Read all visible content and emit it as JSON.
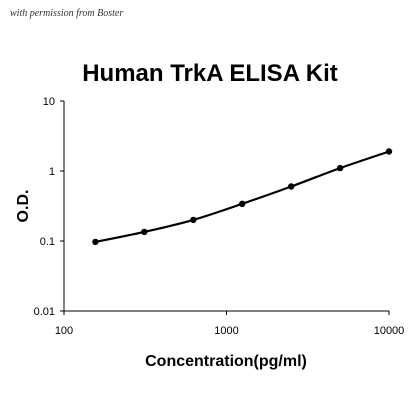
{
  "watermark": "with permission from Boster",
  "chart_data": {
    "type": "line",
    "title": "Human TrkA ELISA Kit",
    "xlabel": "Concentration(pg/ml)",
    "ylabel": "O.D.",
    "x_scale": "log",
    "y_scale": "log",
    "xlim": [
      100,
      10000
    ],
    "ylim": [
      0.01,
      10
    ],
    "x_ticks": [
      "100",
      "1000",
      "10000"
    ],
    "y_ticks": [
      "0.01",
      "0.1",
      "1",
      "10"
    ],
    "grid": false,
    "legend": "none",
    "line_color": "#000000",
    "series": [
      {
        "x": [
          156,
          312,
          625,
          1250,
          2500,
          5000,
          10000
        ],
        "y": [
          0.097,
          0.135,
          0.2,
          0.34,
          0.6,
          1.1,
          1.9
        ]
      }
    ]
  }
}
